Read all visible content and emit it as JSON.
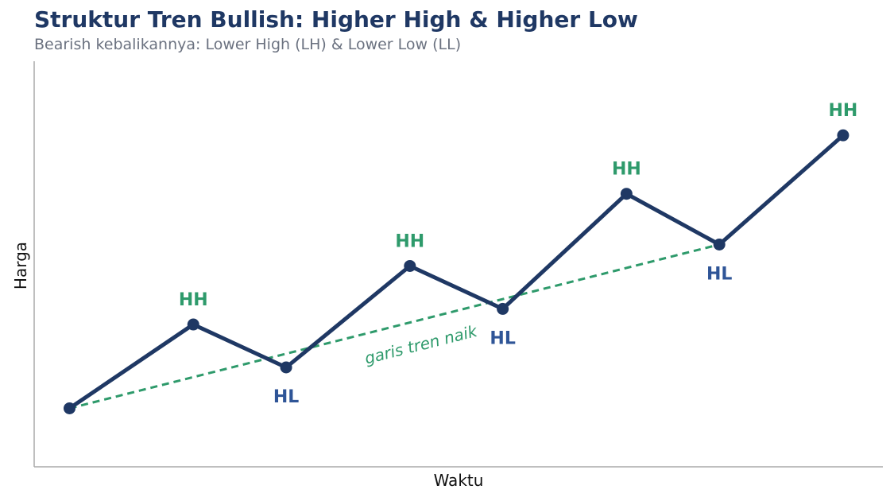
{
  "title": "Struktur Tren Bullish: Higher High & Higher Low",
  "subtitle": "Bearish kebalikannya: Lower High (LH) & Lower Low (LL)",
  "colors": {
    "line": "#1f3864",
    "hh": "#2e9a6b",
    "hl": "#2f5597",
    "trend": "#2e9a6b",
    "axis": "#aaaaaa"
  },
  "chart_data": {
    "type": "line",
    "xlabel": "Waktu",
    "ylabel": "Harga",
    "grid": false,
    "xlim": [
      0.2,
      9.8
    ],
    "ylim": [
      0,
      10.4
    ],
    "series": [
      {
        "x": [
          0.6,
          2.0,
          3.05,
          4.45,
          5.5,
          6.9,
          7.95,
          9.35
        ],
        "y": [
          1.5,
          3.65,
          2.55,
          5.15,
          4.05,
          7.0,
          5.7,
          8.5
        ],
        "point_labels": [
          "",
          "HH",
          "HL",
          "HH",
          "HL",
          "HH",
          "HL",
          "HH"
        ]
      }
    ],
    "trendline": {
      "x": [
        0.6,
        7.95
      ],
      "y": [
        1.5,
        5.7
      ],
      "label": "garis tren naik"
    }
  }
}
